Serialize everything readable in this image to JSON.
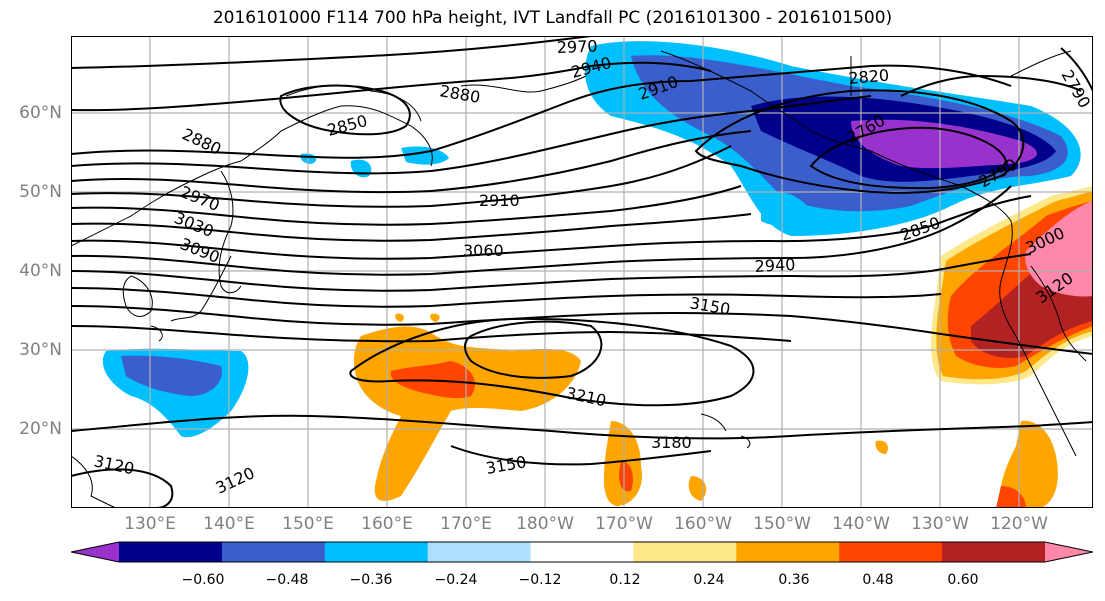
{
  "title": "2016101000 F114 700 hPa height, IVT Landfall PC (2016101300 - 2016101500)",
  "lat_labels": [
    "60°N",
    "50°N",
    "40°N",
    "30°N",
    "20°N"
  ],
  "lon_labels": [
    "130°E",
    "140°E",
    "150°E",
    "160°E",
    "170°E",
    "180°W",
    "170°W",
    "160°W",
    "150°W",
    "140°W",
    "130°W",
    "120°W"
  ],
  "contour_labels": [
    "2970",
    "2940",
    "2910",
    "2880",
    "2820",
    "2850",
    "2880",
    "2970",
    "3030",
    "3090",
    "2910",
    "3060",
    "2940",
    "2850",
    "3150",
    "3000",
    "3120",
    "3210",
    "3180",
    "3150",
    "3120",
    "3120",
    "2790",
    "2790",
    "2760"
  ],
  "colorbar": {
    "ticks": [
      "−0.60",
      "−0.48",
      "−0.36",
      "−0.24",
      "−0.12",
      "0.12",
      "0.24",
      "0.36",
      "0.48",
      "0.60"
    ],
    "colors": [
      "#9932CC",
      "#00008B",
      "#3A5FCD",
      "#00BFFF",
      "#B0E0FF",
      "#FFFFFF",
      "#FFE88A",
      "#FFA500",
      "#FF4500",
      "#B22222",
      "#FF88AA"
    ]
  }
}
